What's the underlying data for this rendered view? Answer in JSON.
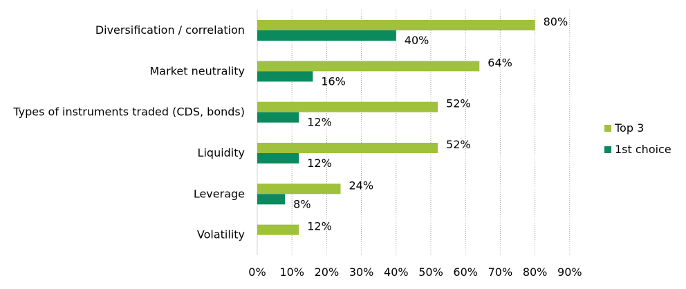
{
  "chart_data": {
    "type": "bar",
    "orientation": "horizontal",
    "categories": [
      "Diversification / correlation",
      "Market neutrality",
      "Types of instruments traded (CDS, bonds)",
      "Liquidity",
      "Leverage",
      "Volatility"
    ],
    "series": [
      {
        "name": "Top 3",
        "values": [
          80,
          64,
          52,
          52,
          24,
          12
        ],
        "color": "#a0c13b"
      },
      {
        "name": "1st choice",
        "values": [
          40,
          16,
          12,
          12,
          8,
          null
        ],
        "color": "#0b8a5d"
      }
    ],
    "data_labels": {
      "Top 3": [
        "80%",
        "64%",
        "52%",
        "52%",
        "24%",
        "12%"
      ],
      "1st choice": [
        "40%",
        "16%",
        "12%",
        "12%",
        "8%",
        ""
      ]
    },
    "xlim": [
      0,
      90
    ],
    "xticks": [
      "0%",
      "10%",
      "20%",
      "30%",
      "40%",
      "50%",
      "60%",
      "70%",
      "80%",
      "90%"
    ],
    "grid": "vertical-dotted",
    "legend_position": "right"
  }
}
